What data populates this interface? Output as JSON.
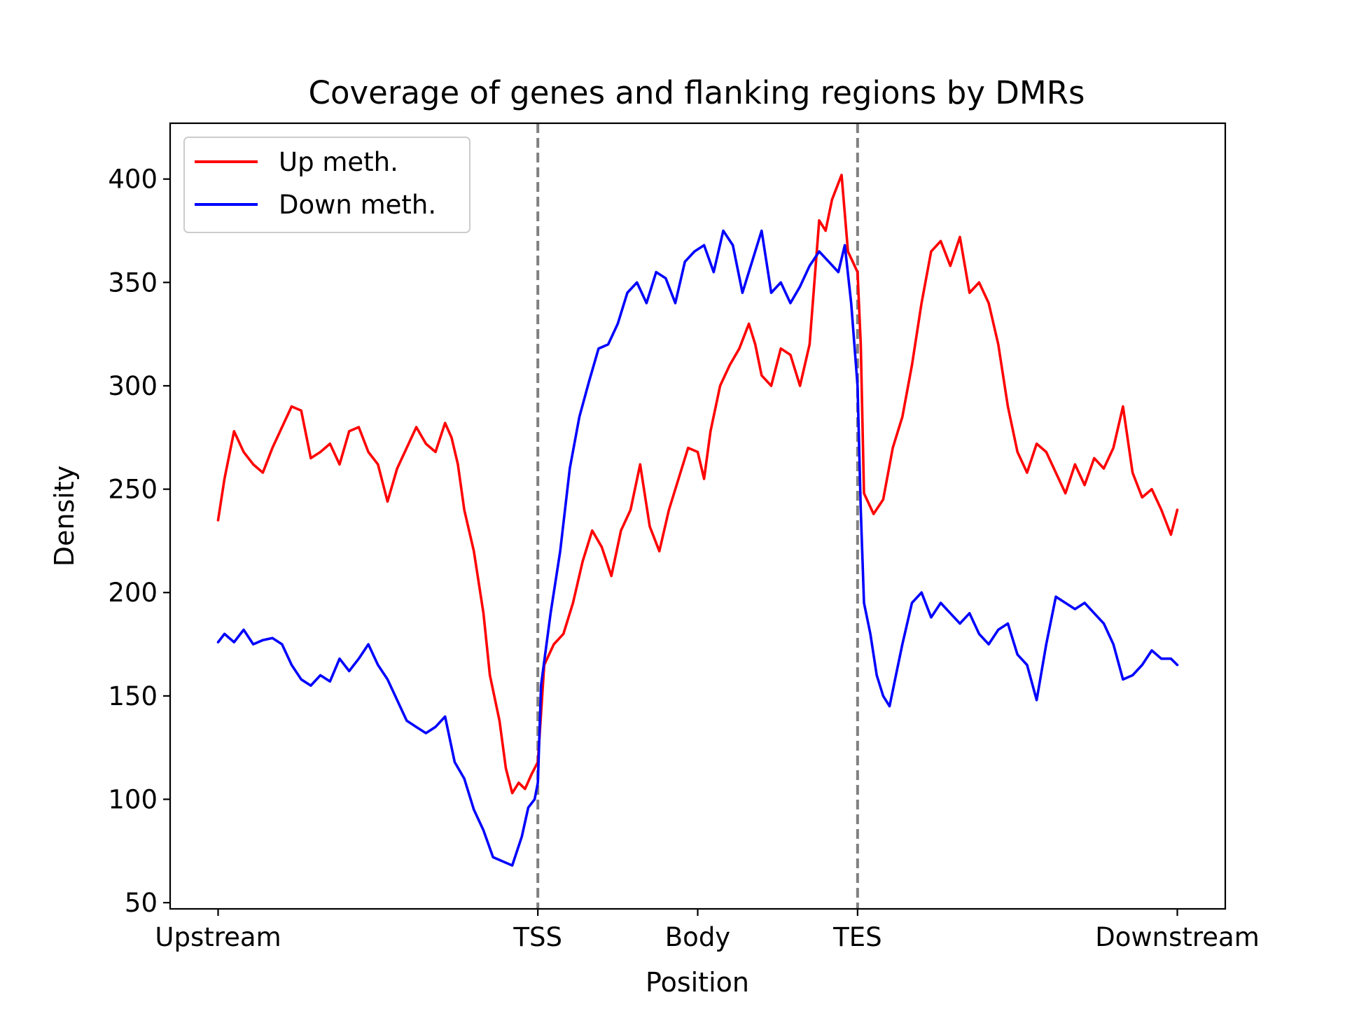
{
  "chart_data": {
    "type": "line",
    "title": "Coverage of genes and flanking regions by DMRs",
    "xlabel": "Position",
    "ylabel": "Density",
    "xlim": [
      -0.15,
      3.15
    ],
    "ylim": [
      47,
      427
    ],
    "x_ticks": [
      {
        "value": 0,
        "label": "Upstream"
      },
      {
        "value": 1,
        "label": "TSS"
      },
      {
        "value": 1.5,
        "label": "Body"
      },
      {
        "value": 2,
        "label": "TES"
      },
      {
        "value": 3,
        "label": "Downstream"
      }
    ],
    "y_ticks": [
      {
        "value": 50,
        "label": "50"
      },
      {
        "value": 100,
        "label": "100"
      },
      {
        "value": 150,
        "label": "150"
      },
      {
        "value": 200,
        "label": "200"
      },
      {
        "value": 250,
        "label": "250"
      },
      {
        "value": 300,
        "label": "300"
      },
      {
        "value": 350,
        "label": "350"
      },
      {
        "value": 400,
        "label": "400"
      }
    ],
    "vlines": [
      {
        "x": 1,
        "style": "dashed",
        "color": "#808080"
      },
      {
        "x": 2,
        "style": "dashed",
        "color": "#808080"
      }
    ],
    "grid": false,
    "legend": {
      "position": "top-left"
    },
    "series": [
      {
        "name": "Up meth.",
        "color": "#ff0000",
        "points": [
          [
            0.0,
            235
          ],
          [
            0.02,
            255
          ],
          [
            0.05,
            278
          ],
          [
            0.08,
            268
          ],
          [
            0.11,
            262
          ],
          [
            0.14,
            258
          ],
          [
            0.17,
            270
          ],
          [
            0.2,
            280
          ],
          [
            0.23,
            290
          ],
          [
            0.26,
            288
          ],
          [
            0.29,
            265
          ],
          [
            0.32,
            268
          ],
          [
            0.35,
            272
          ],
          [
            0.38,
            262
          ],
          [
            0.41,
            278
          ],
          [
            0.44,
            280
          ],
          [
            0.47,
            268
          ],
          [
            0.5,
            262
          ],
          [
            0.53,
            244
          ],
          [
            0.56,
            260
          ],
          [
            0.59,
            270
          ],
          [
            0.62,
            280
          ],
          [
            0.65,
            272
          ],
          [
            0.68,
            268
          ],
          [
            0.71,
            282
          ],
          [
            0.73,
            275
          ],
          [
            0.75,
            262
          ],
          [
            0.77,
            240
          ],
          [
            0.8,
            220
          ],
          [
            0.83,
            190
          ],
          [
            0.85,
            160
          ],
          [
            0.88,
            138
          ],
          [
            0.9,
            115
          ],
          [
            0.92,
            103
          ],
          [
            0.94,
            108
          ],
          [
            0.96,
            105
          ],
          [
            0.98,
            112
          ],
          [
            1.0,
            118
          ],
          [
            1.02,
            165
          ],
          [
            1.05,
            175
          ],
          [
            1.08,
            180
          ],
          [
            1.11,
            195
          ],
          [
            1.14,
            215
          ],
          [
            1.17,
            230
          ],
          [
            1.2,
            222
          ],
          [
            1.23,
            208
          ],
          [
            1.26,
            230
          ],
          [
            1.29,
            240
          ],
          [
            1.32,
            262
          ],
          [
            1.35,
            232
          ],
          [
            1.38,
            220
          ],
          [
            1.41,
            240
          ],
          [
            1.44,
            255
          ],
          [
            1.47,
            270
          ],
          [
            1.5,
            268
          ],
          [
            1.52,
            255
          ],
          [
            1.54,
            278
          ],
          [
            1.57,
            300
          ],
          [
            1.6,
            310
          ],
          [
            1.63,
            318
          ],
          [
            1.66,
            330
          ],
          [
            1.68,
            320
          ],
          [
            1.7,
            305
          ],
          [
            1.73,
            300
          ],
          [
            1.76,
            318
          ],
          [
            1.79,
            315
          ],
          [
            1.82,
            300
          ],
          [
            1.85,
            320
          ],
          [
            1.88,
            380
          ],
          [
            1.9,
            375
          ],
          [
            1.92,
            390
          ],
          [
            1.94,
            398
          ],
          [
            1.95,
            402
          ],
          [
            1.97,
            365
          ],
          [
            2.0,
            355
          ],
          [
            2.01,
            320
          ],
          [
            2.02,
            248
          ],
          [
            2.05,
            238
          ],
          [
            2.08,
            245
          ],
          [
            2.11,
            270
          ],
          [
            2.14,
            285
          ],
          [
            2.17,
            310
          ],
          [
            2.2,
            340
          ],
          [
            2.23,
            365
          ],
          [
            2.26,
            370
          ],
          [
            2.29,
            358
          ],
          [
            2.32,
            372
          ],
          [
            2.35,
            345
          ],
          [
            2.38,
            350
          ],
          [
            2.41,
            340
          ],
          [
            2.44,
            320
          ],
          [
            2.47,
            290
          ],
          [
            2.5,
            268
          ],
          [
            2.53,
            258
          ],
          [
            2.56,
            272
          ],
          [
            2.59,
            268
          ],
          [
            2.62,
            258
          ],
          [
            2.65,
            248
          ],
          [
            2.68,
            262
          ],
          [
            2.71,
            252
          ],
          [
            2.74,
            265
          ],
          [
            2.77,
            260
          ],
          [
            2.8,
            270
          ],
          [
            2.83,
            290
          ],
          [
            2.86,
            258
          ],
          [
            2.89,
            246
          ],
          [
            2.92,
            250
          ],
          [
            2.95,
            240
          ],
          [
            2.98,
            228
          ],
          [
            3.0,
            240
          ]
        ]
      },
      {
        "name": "Down meth.",
        "color": "#0000ff",
        "points": [
          [
            0.0,
            176
          ],
          [
            0.02,
            180
          ],
          [
            0.05,
            176
          ],
          [
            0.08,
            182
          ],
          [
            0.11,
            175
          ],
          [
            0.14,
            177
          ],
          [
            0.17,
            178
          ],
          [
            0.2,
            175
          ],
          [
            0.23,
            165
          ],
          [
            0.26,
            158
          ],
          [
            0.29,
            155
          ],
          [
            0.32,
            160
          ],
          [
            0.35,
            157
          ],
          [
            0.38,
            168
          ],
          [
            0.41,
            162
          ],
          [
            0.44,
            168
          ],
          [
            0.47,
            175
          ],
          [
            0.5,
            165
          ],
          [
            0.53,
            158
          ],
          [
            0.56,
            148
          ],
          [
            0.59,
            138
          ],
          [
            0.62,
            135
          ],
          [
            0.65,
            132
          ],
          [
            0.68,
            135
          ],
          [
            0.71,
            140
          ],
          [
            0.74,
            118
          ],
          [
            0.77,
            110
          ],
          [
            0.8,
            95
          ],
          [
            0.83,
            85
          ],
          [
            0.86,
            72
          ],
          [
            0.89,
            70
          ],
          [
            0.92,
            68
          ],
          [
            0.95,
            82
          ],
          [
            0.97,
            96
          ],
          [
            0.99,
            100
          ],
          [
            1.0,
            108
          ],
          [
            1.01,
            155
          ],
          [
            1.04,
            190
          ],
          [
            1.07,
            220
          ],
          [
            1.1,
            260
          ],
          [
            1.13,
            285
          ],
          [
            1.16,
            302
          ],
          [
            1.19,
            318
          ],
          [
            1.22,
            320
          ],
          [
            1.25,
            330
          ],
          [
            1.28,
            345
          ],
          [
            1.31,
            350
          ],
          [
            1.34,
            340
          ],
          [
            1.37,
            355
          ],
          [
            1.4,
            352
          ],
          [
            1.43,
            340
          ],
          [
            1.46,
            360
          ],
          [
            1.49,
            365
          ],
          [
            1.52,
            368
          ],
          [
            1.55,
            355
          ],
          [
            1.58,
            375
          ],
          [
            1.61,
            368
          ],
          [
            1.64,
            345
          ],
          [
            1.67,
            360
          ],
          [
            1.7,
            375
          ],
          [
            1.73,
            345
          ],
          [
            1.76,
            350
          ],
          [
            1.79,
            340
          ],
          [
            1.82,
            348
          ],
          [
            1.85,
            358
          ],
          [
            1.88,
            365
          ],
          [
            1.91,
            360
          ],
          [
            1.94,
            355
          ],
          [
            1.96,
            368
          ],
          [
            1.98,
            340
          ],
          [
            2.0,
            300
          ],
          [
            2.01,
            240
          ],
          [
            2.02,
            195
          ],
          [
            2.04,
            180
          ],
          [
            2.06,
            160
          ],
          [
            2.08,
            150
          ],
          [
            2.1,
            145
          ],
          [
            2.12,
            160
          ],
          [
            2.14,
            175
          ],
          [
            2.17,
            195
          ],
          [
            2.2,
            200
          ],
          [
            2.23,
            188
          ],
          [
            2.26,
            195
          ],
          [
            2.29,
            190
          ],
          [
            2.32,
            185
          ],
          [
            2.35,
            190
          ],
          [
            2.38,
            180
          ],
          [
            2.41,
            175
          ],
          [
            2.44,
            182
          ],
          [
            2.47,
            185
          ],
          [
            2.5,
            170
          ],
          [
            2.53,
            165
          ],
          [
            2.56,
            148
          ],
          [
            2.59,
            175
          ],
          [
            2.62,
            198
          ],
          [
            2.65,
            195
          ],
          [
            2.68,
            192
          ],
          [
            2.71,
            195
          ],
          [
            2.74,
            190
          ],
          [
            2.77,
            185
          ],
          [
            2.8,
            175
          ],
          [
            2.83,
            158
          ],
          [
            2.86,
            160
          ],
          [
            2.89,
            165
          ],
          [
            2.92,
            172
          ],
          [
            2.95,
            168
          ],
          [
            2.98,
            168
          ],
          [
            3.0,
            165
          ]
        ]
      }
    ]
  }
}
